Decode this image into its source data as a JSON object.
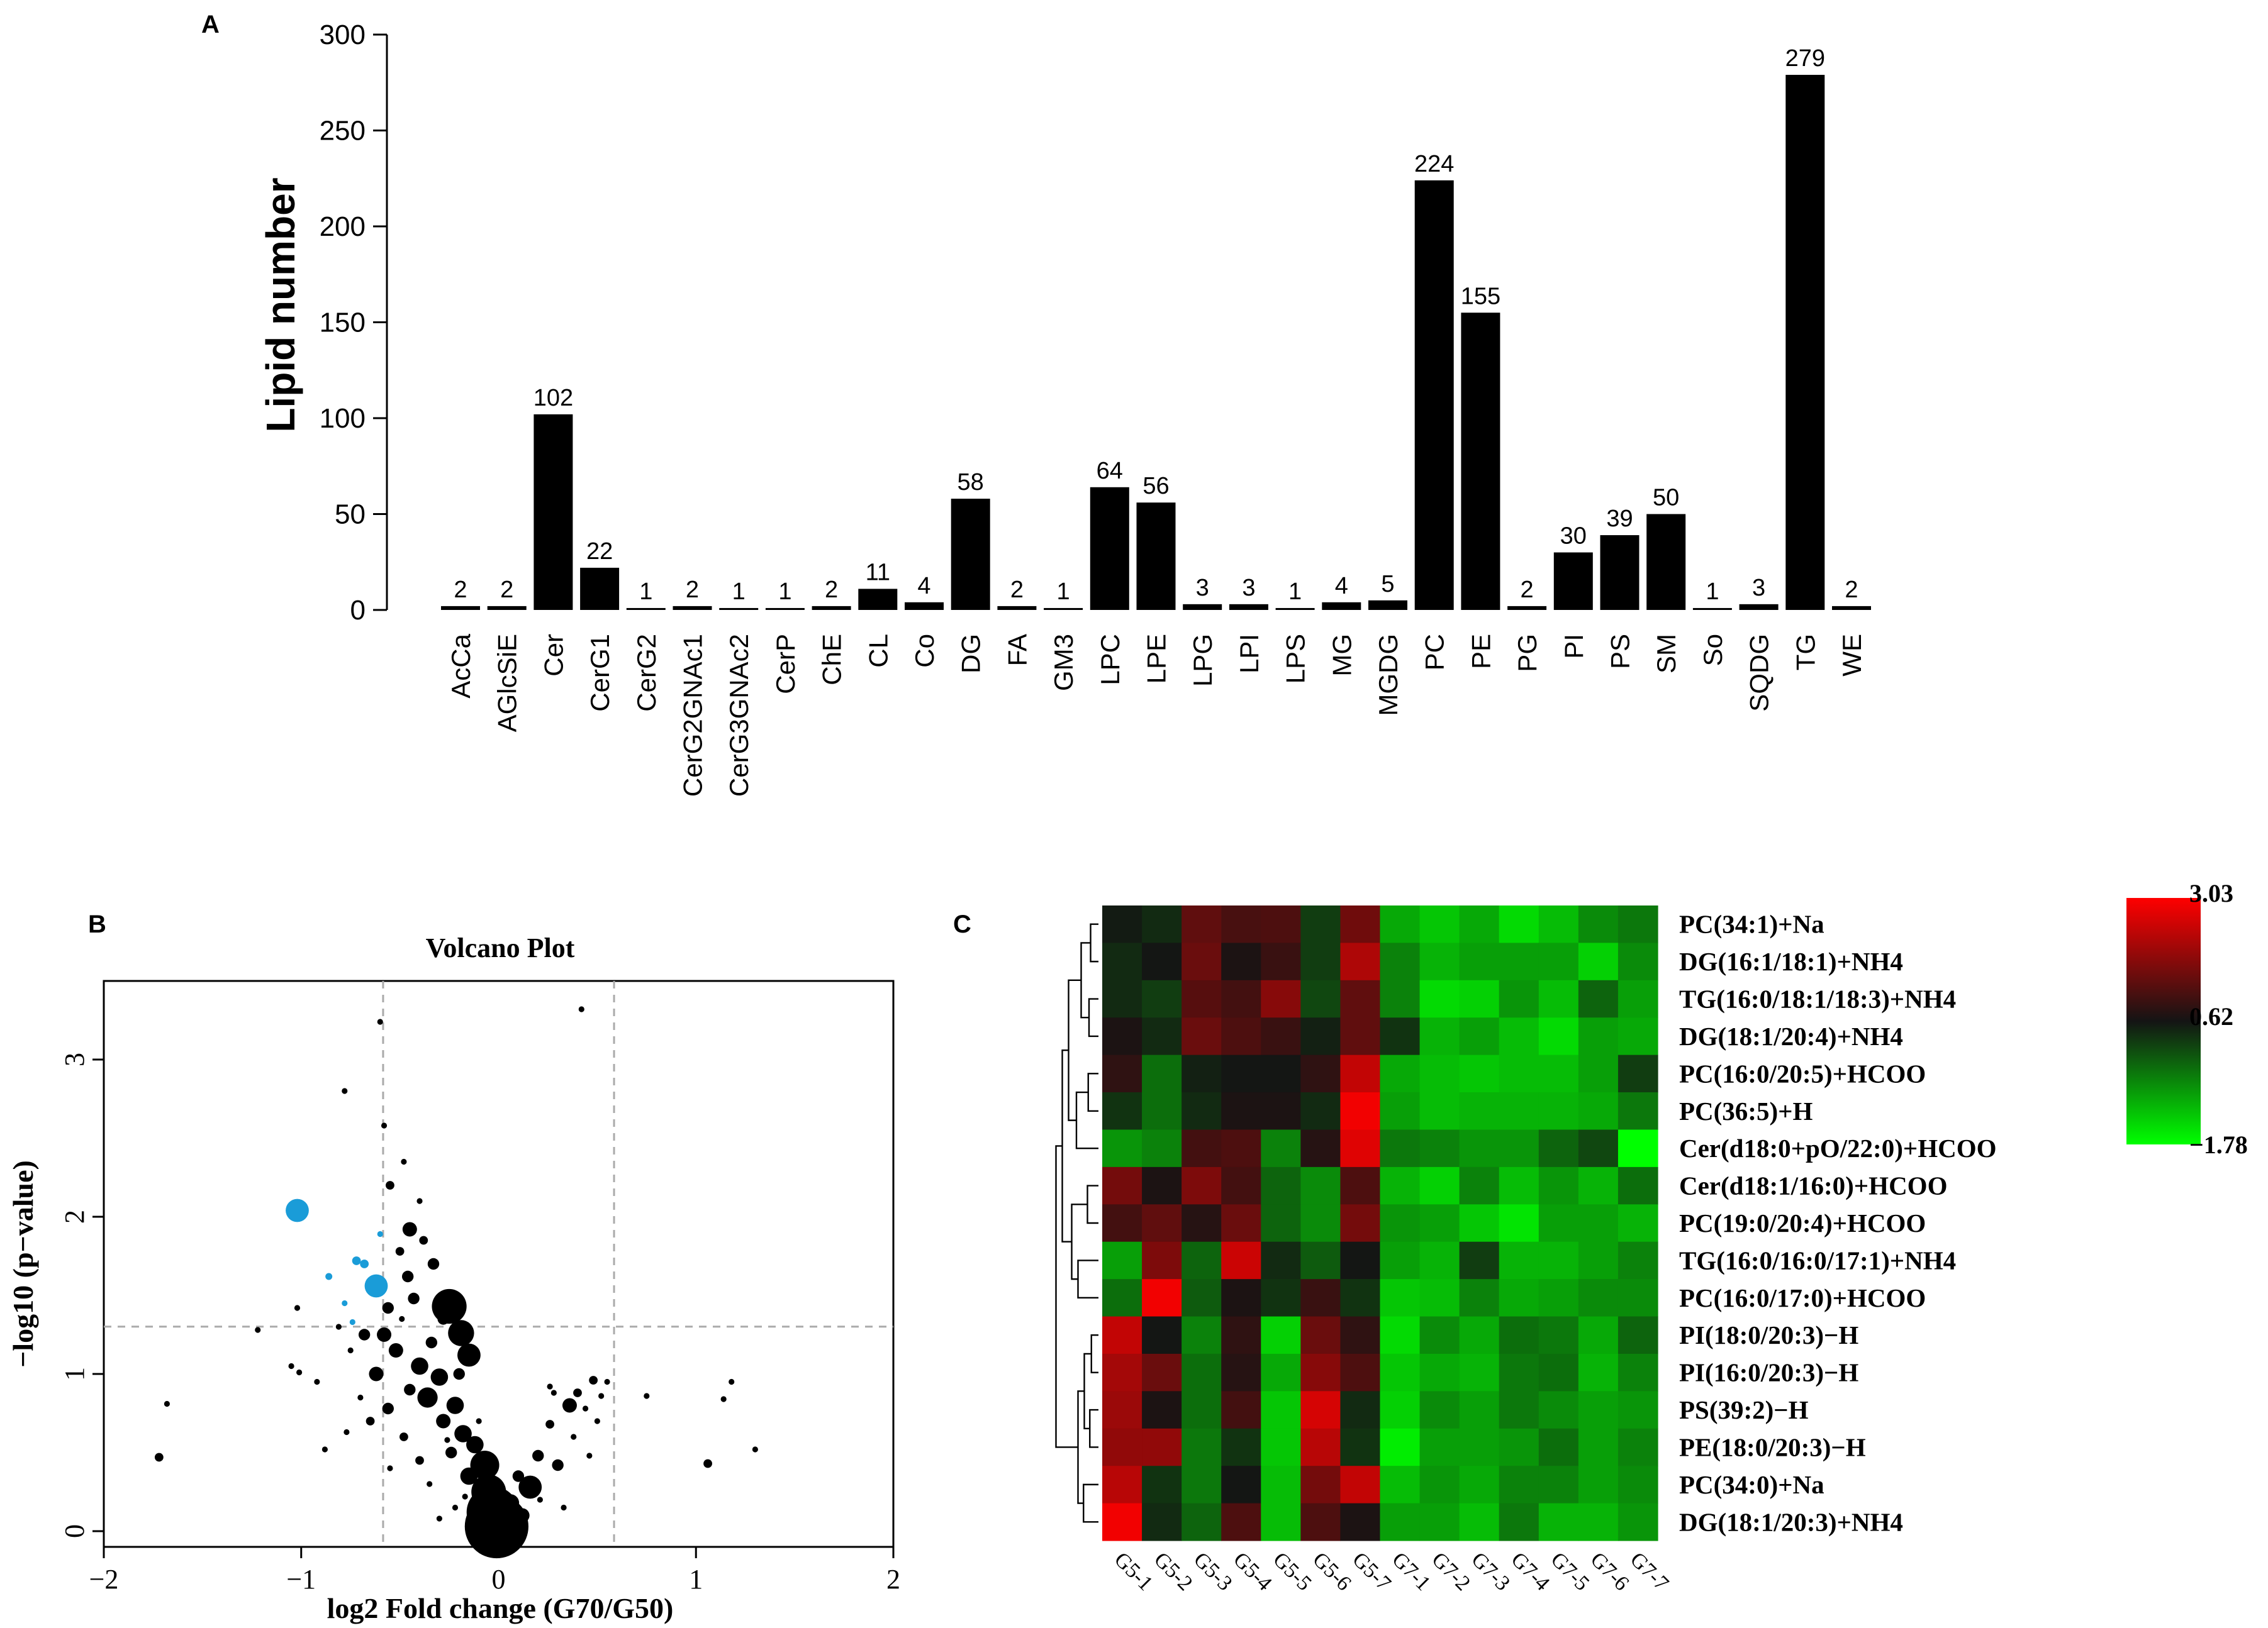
{
  "chart_data": [
    {
      "panel": "A",
      "type": "bar",
      "ylabel": "Lipid number",
      "ylim": [
        0,
        300
      ],
      "yticks": [
        0,
        50,
        100,
        150,
        200,
        250,
        300
      ],
      "categories": [
        "AcCa",
        "AGlcSiE",
        "Cer",
        "CerG1",
        "CerG2",
        "CerG2GNAc1",
        "CerG3GNAc2",
        "CerP",
        "ChE",
        "CL",
        "Co",
        "DG",
        "FA",
        "GM3",
        "LPC",
        "LPE",
        "LPG",
        "LPI",
        "LPS",
        "MG",
        "MGDG",
        "PC",
        "PE",
        "PG",
        "PI",
        "PS",
        "SM",
        "So",
        "SQDG",
        "TG",
        "WE"
      ],
      "values": [
        2,
        2,
        102,
        22,
        1,
        2,
        1,
        1,
        2,
        11,
        4,
        58,
        2,
        1,
        64,
        56,
        3,
        3,
        1,
        4,
        5,
        224,
        155,
        2,
        30,
        39,
        50,
        1,
        3,
        279,
        2
      ]
    },
    {
      "panel": "B",
      "type": "scatter",
      "title": "Volcano Plot",
      "xlabel": "log2 Fold change (G70/G50)",
      "ylabel": "−log10 (p−value)",
      "xlim": [
        -2,
        2
      ],
      "ylim": [
        -0.1,
        3.5
      ],
      "xticks": [
        -2,
        -1,
        0,
        1,
        2
      ],
      "xtick_labels": [
        "−2",
        "−1",
        "0",
        "1",
        "2"
      ],
      "yticks": [
        0,
        1,
        2,
        3
      ],
      "thresholds": {
        "x": [
          -0.585,
          0.585
        ],
        "y": 1.301
      },
      "colors": {
        "normal": "#000000",
        "significant": "#1a9cd8"
      },
      "points": [
        {
          "x": -1.02,
          "y": 2.04,
          "s": 4,
          "c": "b"
        },
        {
          "x": -0.62,
          "y": 1.56,
          "s": 4,
          "c": "b"
        },
        {
          "x": -0.72,
          "y": 1.72,
          "s": 1.5,
          "c": "b"
        },
        {
          "x": -0.68,
          "y": 1.7,
          "s": 1.5,
          "c": "b"
        },
        {
          "x": -0.86,
          "y": 1.62,
          "s": 1.2,
          "c": "b"
        },
        {
          "x": -0.78,
          "y": 1.45,
          "s": 1,
          "c": "b"
        },
        {
          "x": -0.74,
          "y": 1.33,
          "s": 1,
          "c": "b"
        },
        {
          "x": -0.6,
          "y": 1.89,
          "s": 1,
          "c": "b"
        },
        {
          "x": 0.42,
          "y": 3.32,
          "s": 1,
          "c": "k"
        },
        {
          "x": -0.6,
          "y": 3.24,
          "s": 1,
          "c": "k"
        },
        {
          "x": -0.78,
          "y": 2.8,
          "s": 1,
          "c": "k"
        },
        {
          "x": -0.58,
          "y": 2.58,
          "s": 1,
          "c": "k"
        },
        {
          "x": -0.48,
          "y": 2.35,
          "s": 1,
          "c": "k"
        },
        {
          "x": -0.55,
          "y": 2.2,
          "s": 1.5,
          "c": "k"
        },
        {
          "x": -0.4,
          "y": 2.1,
          "s": 1,
          "c": "k"
        },
        {
          "x": -0.45,
          "y": 1.92,
          "s": 2.5,
          "c": "k"
        },
        {
          "x": -0.5,
          "y": 1.78,
          "s": 1.5,
          "c": "k"
        },
        {
          "x": -0.38,
          "y": 1.85,
          "s": 1.5,
          "c": "k"
        },
        {
          "x": -0.33,
          "y": 1.7,
          "s": 2,
          "c": "k"
        },
        {
          "x": -0.46,
          "y": 1.62,
          "s": 2,
          "c": "k"
        },
        {
          "x": -0.25,
          "y": 1.43,
          "s": 6,
          "c": "k"
        },
        {
          "x": -0.19,
          "y": 1.26,
          "s": 4.5,
          "c": "k"
        },
        {
          "x": -0.28,
          "y": 1.35,
          "s": 2,
          "c": "k"
        },
        {
          "x": -0.15,
          "y": 1.12,
          "s": 4,
          "c": "k"
        },
        {
          "x": -0.56,
          "y": 1.42,
          "s": 2,
          "c": "k"
        },
        {
          "x": -0.43,
          "y": 1.48,
          "s": 2,
          "c": "k"
        },
        {
          "x": -0.52,
          "y": 1.15,
          "s": 2.5,
          "c": "k"
        },
        {
          "x": -0.4,
          "y": 1.05,
          "s": 3,
          "c": "k"
        },
        {
          "x": -0.3,
          "y": 0.98,
          "s": 3,
          "c": "k"
        },
        {
          "x": -0.36,
          "y": 0.85,
          "s": 3.5,
          "c": "k"
        },
        {
          "x": -0.45,
          "y": 0.9,
          "s": 2,
          "c": "k"
        },
        {
          "x": -0.22,
          "y": 0.8,
          "s": 3,
          "c": "k"
        },
        {
          "x": -0.28,
          "y": 0.7,
          "s": 2.5,
          "c": "k"
        },
        {
          "x": -0.18,
          "y": 0.62,
          "s": 3,
          "c": "k"
        },
        {
          "x": -0.12,
          "y": 0.55,
          "s": 3,
          "c": "k"
        },
        {
          "x": -0.07,
          "y": 0.42,
          "s": 5,
          "c": "k"
        },
        {
          "x": -0.24,
          "y": 0.5,
          "s": 2,
          "c": "k"
        },
        {
          "x": -0.15,
          "y": 0.35,
          "s": 3,
          "c": "k"
        },
        {
          "x": -0.05,
          "y": 0.25,
          "s": 6,
          "c": "k"
        },
        {
          "x": -0.03,
          "y": 0.12,
          "s": 9,
          "c": "k"
        },
        {
          "x": -0.01,
          "y": 0.03,
          "s": 11,
          "c": "k"
        },
        {
          "x": 0.06,
          "y": 0.18,
          "s": 3,
          "c": "k"
        },
        {
          "x": 0.1,
          "y": 0.35,
          "s": 2,
          "c": "k"
        },
        {
          "x": 0.16,
          "y": 0.28,
          "s": 4,
          "c": "k"
        },
        {
          "x": 0.2,
          "y": 0.48,
          "s": 2,
          "c": "k"
        },
        {
          "x": 0.12,
          "y": 0.1,
          "s": 2.5,
          "c": "k"
        },
        {
          "x": 0.26,
          "y": 0.68,
          "s": 1.5,
          "c": "k"
        },
        {
          "x": 0.3,
          "y": 0.42,
          "s": 2,
          "c": "k"
        },
        {
          "x": 0.36,
          "y": 0.8,
          "s": 2.5,
          "c": "k"
        },
        {
          "x": 0.4,
          "y": 0.88,
          "s": 1.5,
          "c": "k"
        },
        {
          "x": 0.48,
          "y": 0.96,
          "s": 1.5,
          "c": "k"
        },
        {
          "x": 0.28,
          "y": 0.88,
          "s": 1,
          "c": "k"
        },
        {
          "x": 0.44,
          "y": 0.78,
          "s": 1,
          "c": "k"
        },
        {
          "x": 0.21,
          "y": 0.2,
          "s": 1,
          "c": "k"
        },
        {
          "x": 0.33,
          "y": 0.15,
          "s": 1,
          "c": "k"
        },
        {
          "x": 0.5,
          "y": 0.7,
          "s": 1,
          "c": "k"
        },
        {
          "x": 0.52,
          "y": 0.86,
          "s": 1,
          "c": "k"
        },
        {
          "x": 0.55,
          "y": 0.95,
          "s": 1,
          "c": "k"
        },
        {
          "x": -0.62,
          "y": 1.0,
          "s": 2.5,
          "c": "k"
        },
        {
          "x": -0.56,
          "y": 0.78,
          "s": 2,
          "c": "k"
        },
        {
          "x": -0.65,
          "y": 0.7,
          "s": 1.5,
          "c": "k"
        },
        {
          "x": -0.7,
          "y": 0.85,
          "s": 1,
          "c": "k"
        },
        {
          "x": -0.48,
          "y": 0.6,
          "s": 1.5,
          "c": "k"
        },
        {
          "x": -0.4,
          "y": 0.45,
          "s": 1.5,
          "c": "k"
        },
        {
          "x": -0.35,
          "y": 0.3,
          "s": 1,
          "c": "k"
        },
        {
          "x": -0.55,
          "y": 0.4,
          "s": 1,
          "c": "k"
        },
        {
          "x": -0.75,
          "y": 1.15,
          "s": 1,
          "c": "k"
        },
        {
          "x": -0.81,
          "y": 1.3,
          "s": 1,
          "c": "k"
        },
        {
          "x": -0.68,
          "y": 1.25,
          "s": 2,
          "c": "k"
        },
        {
          "x": -0.58,
          "y": 1.25,
          "s": 2.5,
          "c": "k"
        },
        {
          "x": -0.34,
          "y": 1.2,
          "s": 2,
          "c": "k"
        },
        {
          "x": -0.2,
          "y": 1.0,
          "s": 2,
          "c": "k"
        },
        {
          "x": -0.26,
          "y": 0.58,
          "s": 1,
          "c": "k"
        },
        {
          "x": -0.1,
          "y": 0.7,
          "s": 1,
          "c": "k"
        },
        {
          "x": -0.17,
          "y": 0.22,
          "s": 1,
          "c": "k"
        },
        {
          "x": -0.08,
          "y": 0.3,
          "s": 1,
          "c": "k"
        },
        {
          "x": -1.02,
          "y": 1.42,
          "s": 1,
          "c": "k"
        },
        {
          "x": -1.05,
          "y": 1.05,
          "s": 1,
          "c": "k"
        },
        {
          "x": -1.22,
          "y": 1.28,
          "s": 1,
          "c": "k"
        },
        {
          "x": -1.01,
          "y": 1.01,
          "s": 1,
          "c": "k"
        },
        {
          "x": -1.68,
          "y": 0.81,
          "s": 1,
          "c": "k"
        },
        {
          "x": -1.72,
          "y": 0.47,
          "s": 1.5,
          "c": "k"
        },
        {
          "x": -0.92,
          "y": 0.95,
          "s": 1,
          "c": "k"
        },
        {
          "x": -0.77,
          "y": 0.63,
          "s": 1,
          "c": "k"
        },
        {
          "x": -0.88,
          "y": 0.52,
          "s": 1,
          "c": "k"
        },
        {
          "x": -0.49,
          "y": 1.35,
          "s": 1,
          "c": "k"
        },
        {
          "x": 0.75,
          "y": 0.86,
          "s": 1,
          "c": "k"
        },
        {
          "x": 1.06,
          "y": 0.43,
          "s": 1.5,
          "c": "k"
        },
        {
          "x": 1.14,
          "y": 0.84,
          "s": 1,
          "c": "k"
        },
        {
          "x": 1.18,
          "y": 0.95,
          "s": 1,
          "c": "k"
        },
        {
          "x": 1.3,
          "y": 0.52,
          "s": 1,
          "c": "k"
        },
        {
          "x": 0.38,
          "y": 0.6,
          "s": 1,
          "c": "k"
        },
        {
          "x": 0.46,
          "y": 0.48,
          "s": 1,
          "c": "k"
        },
        {
          "x": 0.26,
          "y": 0.92,
          "s": 1,
          "c": "k"
        },
        {
          "x": -0.22,
          "y": 0.15,
          "s": 1,
          "c": "k"
        },
        {
          "x": -0.3,
          "y": 0.08,
          "s": 1,
          "c": "k"
        }
      ]
    },
    {
      "panel": "C",
      "type": "heatmap",
      "columns": [
        "G5-1",
        "G5-2",
        "G5-3",
        "G5-4",
        "G5-5",
        "G5-6",
        "G5-7",
        "G7-1",
        "G7-2",
        "G7-3",
        "G7-4",
        "G7-5",
        "G7-6",
        "G7-7"
      ],
      "rows": [
        "PC(34:1)+Na",
        "DG(16:1/18:1)+NH4",
        "TG(16:0/18:1/18:3)+NH4",
        "DG(18:1/20:4)+NH4",
        "PC(16:0/20:5)+HCOO",
        "PC(36:5)+H",
        "Cer(d18:0+pO/22:0)+HCOO",
        "Cer(d18:1/16:0)+HCOO",
        "PC(19:0/20:4)+HCOO",
        "TG(16:0/16:0/17:1)+NH4",
        "PC(16:0/17:0)+HCOO",
        "PI(18:0/20:3)−H",
        "PI(16:0/20:3)−H",
        "PS(39:2)−H",
        "PE(18:0/20:3)−H",
        "PC(34:0)+Na",
        "DG(18:1/20:3)+NH4"
      ],
      "values": [
        [
          0.55,
          0.4,
          1.4,
          1.15,
          1.2,
          0.2,
          1.55,
          -0.9,
          -1.2,
          -0.9,
          -1.4,
          -1.1,
          -0.6,
          -0.4
        ],
        [
          0.4,
          0.6,
          1.5,
          0.7,
          1.0,
          0.2,
          2.2,
          -0.5,
          -1.0,
          -0.8,
          -0.8,
          -0.8,
          -1.3,
          -0.6
        ],
        [
          0.4,
          0.2,
          1.3,
          1.1,
          1.8,
          0.1,
          1.4,
          -0.5,
          -1.4,
          -1.3,
          -0.7,
          -1.1,
          -0.2,
          -0.8
        ],
        [
          0.7,
          0.4,
          1.5,
          1.2,
          1.0,
          0.5,
          1.4,
          0.3,
          -1.0,
          -0.8,
          -1.1,
          -1.4,
          -0.8,
          -0.9
        ],
        [
          0.9,
          -0.3,
          0.5,
          0.6,
          0.6,
          0.9,
          2.4,
          -0.9,
          -1.1,
          -1.2,
          -1.1,
          -1.1,
          -0.8,
          0.2
        ],
        [
          0.3,
          -0.3,
          0.4,
          0.7,
          0.7,
          0.4,
          2.9,
          -0.8,
          -1.1,
          -1.0,
          -1.0,
          -1.0,
          -0.9,
          -0.4
        ],
        [
          -0.7,
          -0.5,
          1.1,
          1.2,
          -0.5,
          0.8,
          2.7,
          -0.4,
          -0.5,
          -0.7,
          -0.7,
          -0.2,
          0.1,
          -1.78
        ],
        [
          1.6,
          0.7,
          1.7,
          1.1,
          -0.2,
          -0.6,
          1.2,
          -1.0,
          -1.3,
          -0.5,
          -1.1,
          -0.7,
          -1.0,
          -0.3
        ],
        [
          1.1,
          1.4,
          0.8,
          1.5,
          -0.2,
          -0.6,
          1.6,
          -0.7,
          -0.8,
          -1.2,
          -1.5,
          -0.8,
          -0.8,
          -1.0
        ],
        [
          -0.8,
          1.7,
          -0.2,
          2.5,
          0.4,
          -0.1,
          0.6,
          -0.8,
          -1.0,
          0.2,
          -1.0,
          -1.0,
          -0.8,
          -0.5
        ],
        [
          -0.3,
          2.9,
          -0.1,
          0.7,
          0.3,
          1.0,
          0.3,
          -1.2,
          -1.1,
          -0.5,
          -0.9,
          -0.8,
          -0.6,
          -0.6
        ],
        [
          2.4,
          0.6,
          -0.5,
          0.9,
          -1.3,
          1.5,
          0.9,
          -1.4,
          -0.6,
          -0.9,
          -0.3,
          -0.4,
          -0.9,
          -0.2
        ],
        [
          2.1,
          1.5,
          -0.3,
          0.8,
          -0.9,
          1.8,
          1.2,
          -1.2,
          -0.9,
          -1.0,
          -0.4,
          -0.3,
          -1.0,
          -0.5
        ],
        [
          2.0,
          0.7,
          -0.3,
          1.1,
          -1.2,
          2.6,
          0.4,
          -1.3,
          -0.6,
          -0.8,
          -0.4,
          -0.6,
          -0.8,
          -0.7
        ],
        [
          1.9,
          1.9,
          -0.4,
          0.3,
          -1.2,
          2.3,
          0.3,
          -1.6,
          -0.8,
          -0.8,
          -0.7,
          -0.3,
          -0.8,
          -0.5
        ],
        [
          2.3,
          0.3,
          -0.4,
          0.6,
          -1.1,
          1.6,
          2.4,
          -1.1,
          -0.7,
          -0.9,
          -0.5,
          -0.5,
          -0.8,
          -0.6
        ],
        [
          2.9,
          0.4,
          -0.2,
          1.2,
          -1.1,
          1.2,
          0.7,
          -0.8,
          -0.8,
          -1.1,
          -0.4,
          -1.0,
          -1.0,
          -0.7
        ]
      ],
      "color_scale": {
        "min": -1.78,
        "mid": 0.62,
        "max": 3.03,
        "low": "#00ff00",
        "midcolor": "#141414",
        "high": "#ff0000"
      },
      "legend_labels": [
        "3.03",
        "0.62",
        "−1.78"
      ]
    }
  ],
  "panel_labels": {
    "a": "A",
    "b": "B",
    "c": "C"
  }
}
